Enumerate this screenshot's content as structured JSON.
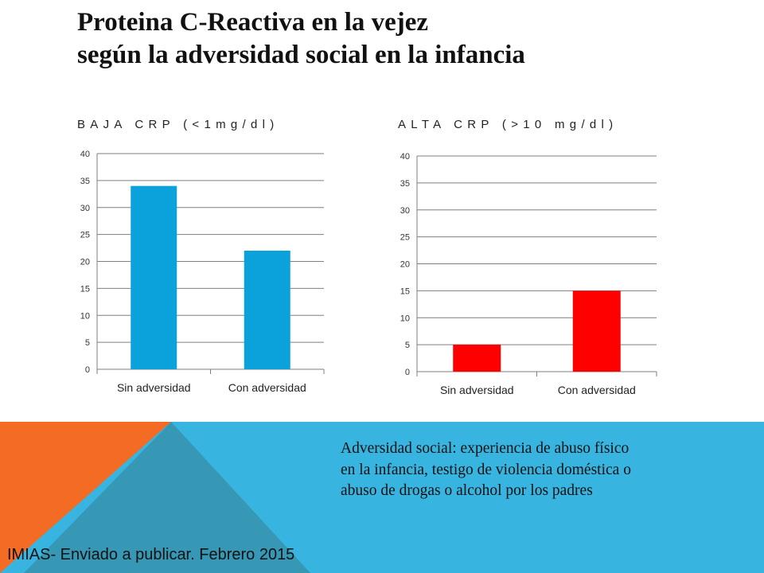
{
  "title": {
    "line1": "Proteina C-Reactiva en la vejez",
    "line2": "según la adversidad social en la infancia"
  },
  "chart_data": [
    {
      "type": "bar",
      "title": "BAJA CRP (<1mg/dl)",
      "categories": [
        "Sin adversidad",
        "Con adversidad"
      ],
      "values": [
        34,
        22
      ],
      "ylim": [
        0,
        40
      ],
      "yticks": [
        0,
        5,
        10,
        15,
        20,
        25,
        30,
        35,
        40
      ],
      "grid": true,
      "color": "#0ba2dc"
    },
    {
      "type": "bar",
      "title": "ALTA CRP (>10 mg/dl)",
      "categories": [
        "Sin adversidad",
        "Con adversidad"
      ],
      "values": [
        5,
        15
      ],
      "ylim": [
        0,
        40
      ],
      "yticks": [
        0,
        5,
        10,
        15,
        20,
        25,
        30,
        35,
        40
      ],
      "grid": true,
      "color": "#ff0000"
    }
  ],
  "note": {
    "line1": "Adversidad social: experiencia de abuso físico",
    "line2": "en la infancia, testigo de violencia doméstica o",
    "line3": "abuso de drogas o alcohol por los padres"
  },
  "source": "IMIAS- Enviado a publicar. Febrero 2015",
  "colors": {
    "band_blue": "#38b4e0",
    "band_orange": "#f46b23",
    "band_teal": "#3798b5"
  }
}
